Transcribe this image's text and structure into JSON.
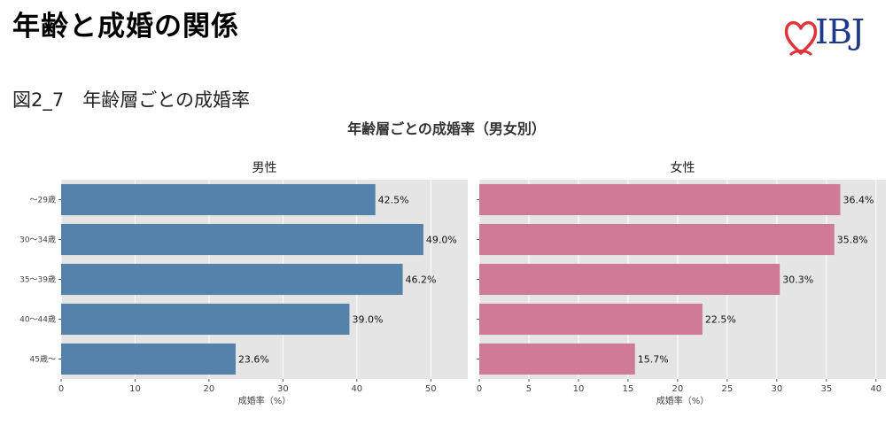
{
  "page": {
    "title": "年齢と成婚の関係",
    "figure_label": "図2_7　年齢層ごとの成婚率",
    "logo_text": "IBJ"
  },
  "colors": {
    "male": "#5482aa",
    "female": "#cf7b98",
    "panel_bg": "#e5e5e5",
    "logo_heart": "#e0343d",
    "logo_text": "#1e3a8c"
  },
  "chart_data": {
    "type": "bar",
    "orientation": "horizontal",
    "title": "年齢層ごとの成婚率（男女別）",
    "categories": [
      "～29歳",
      "30～34歳",
      "35～39歳",
      "40～44歳",
      "45歳～"
    ],
    "panels": [
      {
        "name": "男性",
        "values": [
          42.5,
          49.0,
          46.2,
          39.0,
          23.6
        ],
        "value_labels": [
          "42.5%",
          "49.0%",
          "46.2%",
          "39.0%",
          "23.6%"
        ],
        "xlabel": "成婚率（%）",
        "xlim": [
          0,
          55
        ],
        "xticks": [
          0,
          10,
          20,
          30,
          40,
          50
        ],
        "color": "#5482aa"
      },
      {
        "name": "女性",
        "values": [
          36.4,
          35.8,
          30.3,
          22.5,
          15.7
        ],
        "value_labels": [
          "36.4%",
          "35.8%",
          "30.3%",
          "22.5%",
          "15.7%"
        ],
        "xlabel": "成婚率（%）",
        "xlim": [
          0,
          41
        ],
        "xticks": [
          0,
          5,
          10,
          15,
          20,
          25,
          30,
          35,
          40
        ],
        "color": "#cf7b98"
      }
    ],
    "grid": true
  }
}
